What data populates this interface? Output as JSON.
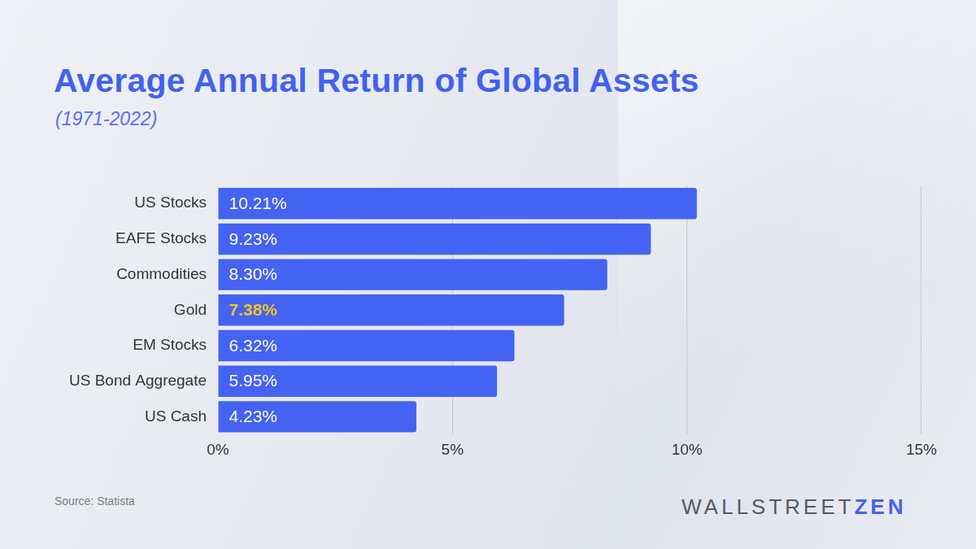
{
  "chart_data": {
    "type": "bar",
    "orientation": "horizontal",
    "title": "Average Annual Return of Global Assets",
    "subtitle": "(1971-2022)",
    "categories": [
      "US Stocks",
      "EAFE Stocks",
      "Commodities",
      "Gold",
      "EM Stocks",
      "US Bond Aggregate",
      "US Cash"
    ],
    "values": [
      10.21,
      9.23,
      8.3,
      7.38,
      6.32,
      5.95,
      4.23
    ],
    "value_labels": [
      "10.21%",
      "9.23%",
      "8.30%",
      "7.38%",
      "6.32%",
      "5.95%",
      "4.23%"
    ],
    "data_labels": true,
    "color": "#4563f2",
    "xlim": [
      0,
      15
    ],
    "xticks": [
      {
        "value": 0,
        "label": "0%"
      },
      {
        "value": 5,
        "label": "5%"
      },
      {
        "value": 10,
        "label": "10%"
      },
      {
        "value": 15,
        "label": "15%"
      }
    ],
    "grid": true
  },
  "source": "Source: Statista",
  "logo": [
    "WALLSTREET",
    "ZEN"
  ]
}
